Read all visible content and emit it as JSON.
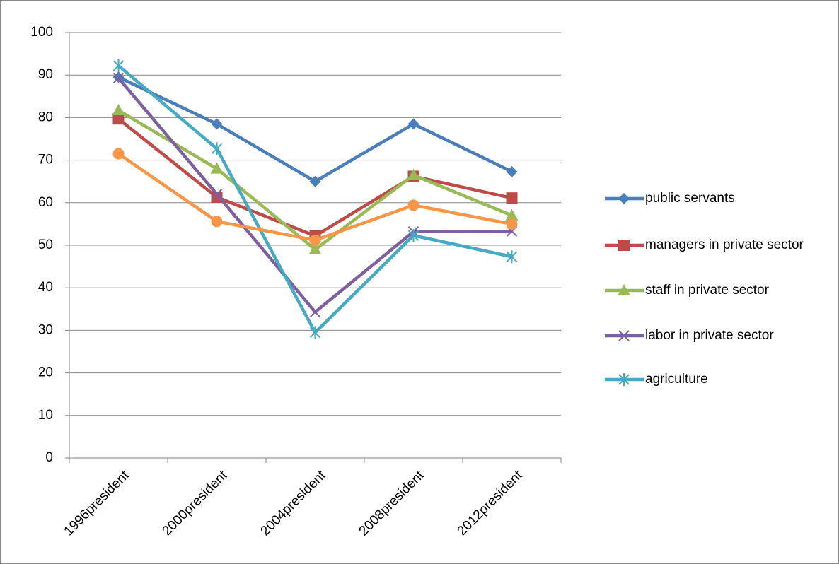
{
  "chart_data": {
    "type": "line",
    "categories": [
      "1996president",
      "2000president",
      "2004president",
      "2008president",
      "2012president"
    ],
    "series": [
      {
        "name": "public servants",
        "color": "#4a7ebb",
        "marker": "diamond",
        "values": [
          89.5,
          78.5,
          65,
          78.5,
          67.3
        ]
      },
      {
        "name": "managers in private sector",
        "color": "#be4b48",
        "marker": "square",
        "values": [
          79.7,
          61.3,
          52.2,
          66.2,
          61.1
        ]
      },
      {
        "name": "staff in private sector",
        "color": "#98b954",
        "marker": "triangle",
        "values": [
          81.7,
          68,
          49,
          66.5,
          57
        ]
      },
      {
        "name": "labor in private sector",
        "color": "#7d60a0",
        "marker": "x",
        "values": [
          89.3,
          62,
          34.3,
          53.2,
          53.3
        ]
      },
      {
        "name": "agriculture",
        "color": "#46aac5",
        "marker": "star",
        "values": [
          92.2,
          72.7,
          29.5,
          52.3,
          47.3
        ]
      },
      {
        "color": "#f79646",
        "marker": "circle",
        "values": [
          71.5,
          55.6,
          51.2,
          59.4,
          55
        ]
      }
    ],
    "ylim": [
      0,
      100
    ],
    "yticks": [
      0,
      10,
      20,
      30,
      40,
      50,
      60,
      70,
      80,
      90,
      100
    ],
    "grid": true,
    "legend": "right"
  }
}
